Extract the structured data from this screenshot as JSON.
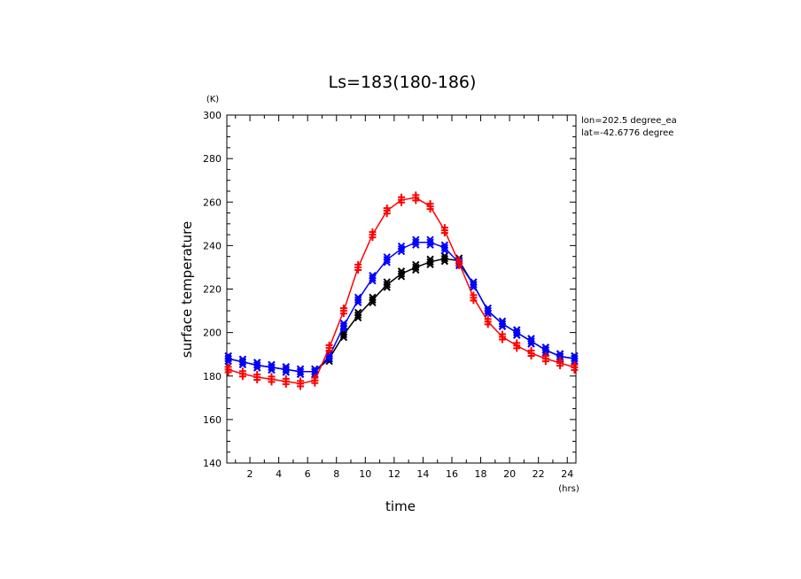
{
  "chart_data": {
    "type": "line",
    "title": "Ls=183(180-186)",
    "xlabel": "time",
    "ylabel": "surface temperature",
    "x_unit": "(hrs)",
    "y_unit": "(K)",
    "xlim": [
      0.4,
      24.6
    ],
    "ylim": [
      140,
      300
    ],
    "x_ticks": [
      2,
      4,
      6,
      8,
      10,
      12,
      14,
      16,
      18,
      20,
      22,
      24
    ],
    "y_ticks": [
      140,
      160,
      180,
      200,
      220,
      240,
      260,
      280,
      300
    ],
    "annotations": [
      "lon=202.5 degree_ea",
      "lat=-42.6776 degree"
    ],
    "x": [
      0.5,
      1.5,
      2.5,
      3.5,
      4.5,
      5.5,
      6.5,
      7.5,
      8.5,
      9.5,
      10.5,
      11.5,
      12.5,
      13.5,
      14.5,
      15.5,
      16.5,
      17.5,
      18.5,
      19.5,
      20.5,
      21.5,
      22.5,
      23.5,
      24.5
    ],
    "series": [
      {
        "color": "#ff0000",
        "marker": "plus",
        "values": [
          183,
          181,
          179.5,
          178.5,
          177.5,
          176.5,
          178,
          193,
          210,
          230,
          245,
          256,
          261,
          262,
          258,
          247,
          232,
          216,
          205,
          198,
          194,
          190.5,
          188,
          186,
          184
        ]
      },
      {
        "color": "#0000ff",
        "marker": "x",
        "values": [
          188,
          186.5,
          185,
          184,
          183,
          182,
          182,
          189,
          203,
          215,
          225,
          233.5,
          238.5,
          241.5,
          241.5,
          239,
          232,
          222,
          210,
          204,
          200,
          196,
          192,
          189,
          188
        ]
      },
      {
        "color": "#000000",
        "marker": "x",
        "values": [
          188,
          186.5,
          185,
          184,
          183,
          182,
          182,
          188,
          199,
          208,
          215,
          222,
          227,
          230,
          232.5,
          234,
          233,
          222,
          210,
          204,
          200,
          196,
          192,
          189,
          188
        ]
      }
    ]
  }
}
